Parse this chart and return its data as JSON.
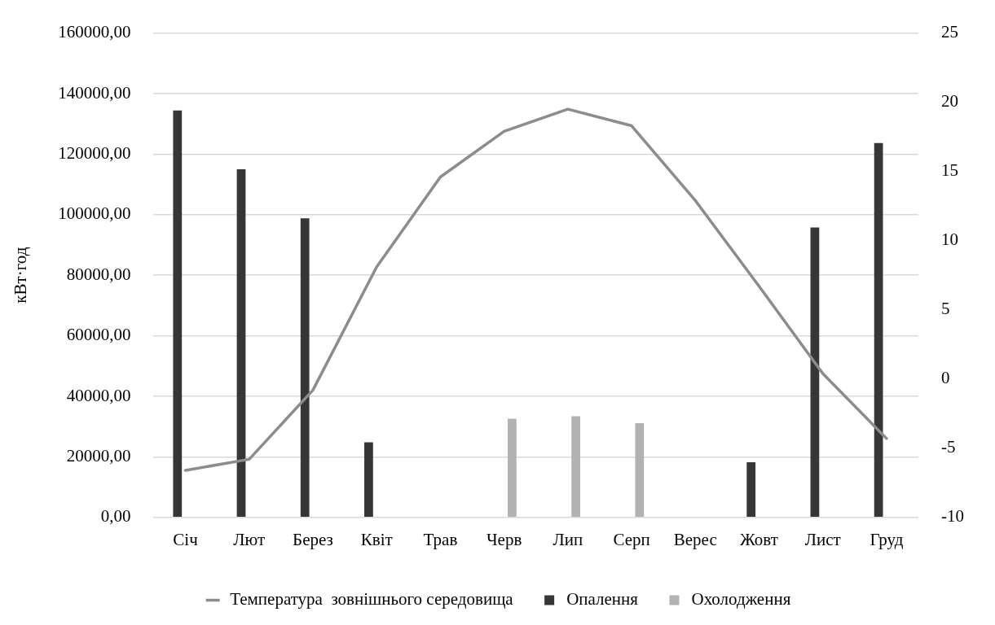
{
  "chart_data": {
    "type": "bar",
    "ylabel": "кВт·год",
    "categories": [
      "Січ",
      "Лют",
      "Берез",
      "Квіт",
      "Трав",
      "Черв",
      "Лип",
      "Серп",
      "Верес",
      "Жовт",
      "Лист",
      "Груд"
    ],
    "series": [
      {
        "name": "Опалення",
        "color": "#363636",
        "values": [
          134400,
          115000,
          98800,
          24800,
          null,
          null,
          null,
          null,
          null,
          18200,
          95800,
          123700
        ]
      },
      {
        "name": "Охолодження",
        "color": "#b2b2b2",
        "values": [
          null,
          null,
          null,
          null,
          null,
          32600,
          33400,
          31100,
          null,
          null,
          null,
          null
        ]
      },
      {
        "name": "Температура  зовнішнього середовища",
        "type": "line",
        "axis": "y2",
        "color": "#8c8c8c",
        "values": [
          -6.6,
          -5.8,
          -0.8,
          8.1,
          14.6,
          17.9,
          19.5,
          18.3,
          12.9,
          6.7,
          0.4,
          -4.3
        ]
      }
    ],
    "ylim": [
      0,
      160000
    ],
    "yticks": [
      {
        "value": 0,
        "label": "0,00"
      },
      {
        "value": 20000,
        "label": "20000,00"
      },
      {
        "value": 40000,
        "label": "40000,00"
      },
      {
        "value": 60000,
        "label": "60000,00"
      },
      {
        "value": 80000,
        "label": "80000,00"
      },
      {
        "value": 100000,
        "label": "100000,00"
      },
      {
        "value": 120000,
        "label": "120000,00"
      },
      {
        "value": 140000,
        "label": "140000,00"
      },
      {
        "value": 160000,
        "label": "160000,00"
      }
    ],
    "y2lim": [
      -10,
      25
    ],
    "y2ticks": [
      -10,
      -5,
      0,
      5,
      10,
      15,
      20,
      25
    ],
    "grid": "y",
    "legend": "bottom",
    "marker": "none",
    "line_style": "solid"
  }
}
